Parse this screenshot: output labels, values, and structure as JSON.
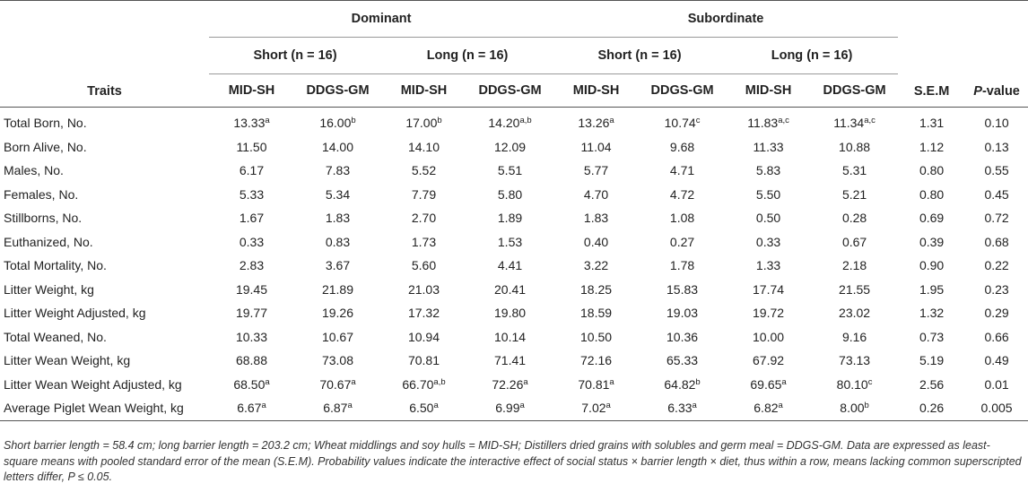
{
  "header": {
    "traits_label": "Traits",
    "groups": [
      "Dominant",
      "Subordinate"
    ],
    "subgroups": [
      {
        "name": "Short",
        "n": "(n = 16)"
      },
      {
        "name": "Long",
        "n": "(n = 16)"
      },
      {
        "name": "Short",
        "n": "(n = 16)"
      },
      {
        "name": "Long",
        "n": "(n = 16)"
      }
    ],
    "diet_columns": [
      "MID-SH",
      "DDGS-GM",
      "MID-SH",
      "DDGS-GM",
      "MID-SH",
      "DDGS-GM",
      "MID-SH",
      "DDGS-GM"
    ],
    "sem_label": "S.E.M",
    "p_label_italic": "P",
    "p_label_rest": "-value"
  },
  "rows": [
    {
      "trait": "Total Born, No.",
      "cells": [
        [
          "13.33",
          "a"
        ],
        [
          "16.00",
          "b"
        ],
        [
          "17.00",
          "b"
        ],
        [
          "14.20",
          "a,b"
        ],
        [
          "13.26",
          "a"
        ],
        [
          "10.74",
          "c"
        ],
        [
          "11.83",
          "a,c"
        ],
        [
          "11.34",
          "a,c"
        ]
      ],
      "sem": "1.31",
      "p": "0.10"
    },
    {
      "trait": "Born Alive, No.",
      "cells": [
        [
          "11.50",
          ""
        ],
        [
          "14.00",
          ""
        ],
        [
          "14.10",
          ""
        ],
        [
          "12.09",
          ""
        ],
        [
          "11.04",
          ""
        ],
        [
          "9.68",
          ""
        ],
        [
          "11.33",
          ""
        ],
        [
          "10.88",
          ""
        ]
      ],
      "sem": "1.12",
      "p": "0.13"
    },
    {
      "trait": "Males, No.",
      "cells": [
        [
          "6.17",
          ""
        ],
        [
          "7.83",
          ""
        ],
        [
          "5.52",
          ""
        ],
        [
          "5.51",
          ""
        ],
        [
          "5.77",
          ""
        ],
        [
          "4.71",
          ""
        ],
        [
          "5.83",
          ""
        ],
        [
          "5.31",
          ""
        ]
      ],
      "sem": "0.80",
      "p": "0.55"
    },
    {
      "trait": "Females, No.",
      "cells": [
        [
          "5.33",
          ""
        ],
        [
          "5.34",
          ""
        ],
        [
          "7.79",
          ""
        ],
        [
          "5.80",
          ""
        ],
        [
          "4.70",
          ""
        ],
        [
          "4.72",
          ""
        ],
        [
          "5.50",
          ""
        ],
        [
          "5.21",
          ""
        ]
      ],
      "sem": "0.80",
      "p": "0.45"
    },
    {
      "trait": "Stillborns, No.",
      "cells": [
        [
          "1.67",
          ""
        ],
        [
          "1.83",
          ""
        ],
        [
          "2.70",
          ""
        ],
        [
          "1.89",
          ""
        ],
        [
          "1.83",
          ""
        ],
        [
          "1.08",
          ""
        ],
        [
          "0.50",
          ""
        ],
        [
          "0.28",
          ""
        ]
      ],
      "sem": "0.69",
      "p": "0.72"
    },
    {
      "trait": "Euthanized, No.",
      "cells": [
        [
          "0.33",
          ""
        ],
        [
          "0.83",
          ""
        ],
        [
          "1.73",
          ""
        ],
        [
          "1.53",
          ""
        ],
        [
          "0.40",
          ""
        ],
        [
          "0.27",
          ""
        ],
        [
          "0.33",
          ""
        ],
        [
          "0.67",
          ""
        ]
      ],
      "sem": "0.39",
      "p": "0.68"
    },
    {
      "trait": "Total Mortality, No.",
      "cells": [
        [
          "2.83",
          ""
        ],
        [
          "3.67",
          ""
        ],
        [
          "5.60",
          ""
        ],
        [
          "4.41",
          ""
        ],
        [
          "3.22",
          ""
        ],
        [
          "1.78",
          ""
        ],
        [
          "1.33",
          ""
        ],
        [
          "2.18",
          ""
        ]
      ],
      "sem": "0.90",
      "p": "0.22"
    },
    {
      "trait": "Litter Weight, kg",
      "cells": [
        [
          "19.45",
          ""
        ],
        [
          "21.89",
          ""
        ],
        [
          "21.03",
          ""
        ],
        [
          "20.41",
          ""
        ],
        [
          "18.25",
          ""
        ],
        [
          "15.83",
          ""
        ],
        [
          "17.74",
          ""
        ],
        [
          "21.55",
          ""
        ]
      ],
      "sem": "1.95",
      "p": "0.23"
    },
    {
      "trait": "Litter Weight Adjusted, kg",
      "cells": [
        [
          "19.77",
          ""
        ],
        [
          "19.26",
          ""
        ],
        [
          "17.32",
          ""
        ],
        [
          "19.80",
          ""
        ],
        [
          "18.59",
          ""
        ],
        [
          "19.03",
          ""
        ],
        [
          "19.72",
          ""
        ],
        [
          "23.02",
          ""
        ]
      ],
      "sem": "1.32",
      "p": "0.29"
    },
    {
      "trait": "Total Weaned, No.",
      "cells": [
        [
          "10.33",
          ""
        ],
        [
          "10.67",
          ""
        ],
        [
          "10.94",
          ""
        ],
        [
          "10.14",
          ""
        ],
        [
          "10.50",
          ""
        ],
        [
          "10.36",
          ""
        ],
        [
          "10.00",
          ""
        ],
        [
          "9.16",
          ""
        ]
      ],
      "sem": "0.73",
      "p": "0.66"
    },
    {
      "trait": "Litter Wean Weight, kg",
      "cells": [
        [
          "68.88",
          ""
        ],
        [
          "73.08",
          ""
        ],
        [
          "70.81",
          ""
        ],
        [
          "71.41",
          ""
        ],
        [
          "72.16",
          ""
        ],
        [
          "65.33",
          ""
        ],
        [
          "67.92",
          ""
        ],
        [
          "73.13",
          ""
        ]
      ],
      "sem": "5.19",
      "p": "0.49"
    },
    {
      "trait": "Litter Wean Weight Adjusted, kg",
      "cells": [
        [
          "68.50",
          "a"
        ],
        [
          "70.67",
          "a"
        ],
        [
          "66.70",
          "a,b"
        ],
        [
          "72.26",
          "a"
        ],
        [
          "70.81",
          "a"
        ],
        [
          "64.82",
          "b"
        ],
        [
          "69.65",
          "a"
        ],
        [
          "80.10",
          "c"
        ]
      ],
      "sem": "2.56",
      "p": "0.01"
    },
    {
      "trait": "Average Piglet Wean Weight, kg",
      "cells": [
        [
          "6.67",
          "a"
        ],
        [
          "6.87",
          "a"
        ],
        [
          "6.50",
          "a"
        ],
        [
          "6.99",
          "a"
        ],
        [
          "7.02",
          "a"
        ],
        [
          "6.33",
          "a"
        ],
        [
          "6.82",
          "a"
        ],
        [
          "8.00",
          "b"
        ]
      ],
      "sem": "0.26",
      "p": "0.005"
    }
  ],
  "footnote": "Short barrier length = 58.4 cm; long barrier length = 203.2 cm; Wheat middlings and soy hulls = MID-SH; Distillers dried grains with solubles and germ meal = DDGS-GM. Data are expressed as least-square means with pooled standard error of the mean (S.E.M). Probability values indicate the interactive effect of social status × barrier length × diet, thus within a row, means lacking common superscripted letters differ, P ≤ 0.05."
}
